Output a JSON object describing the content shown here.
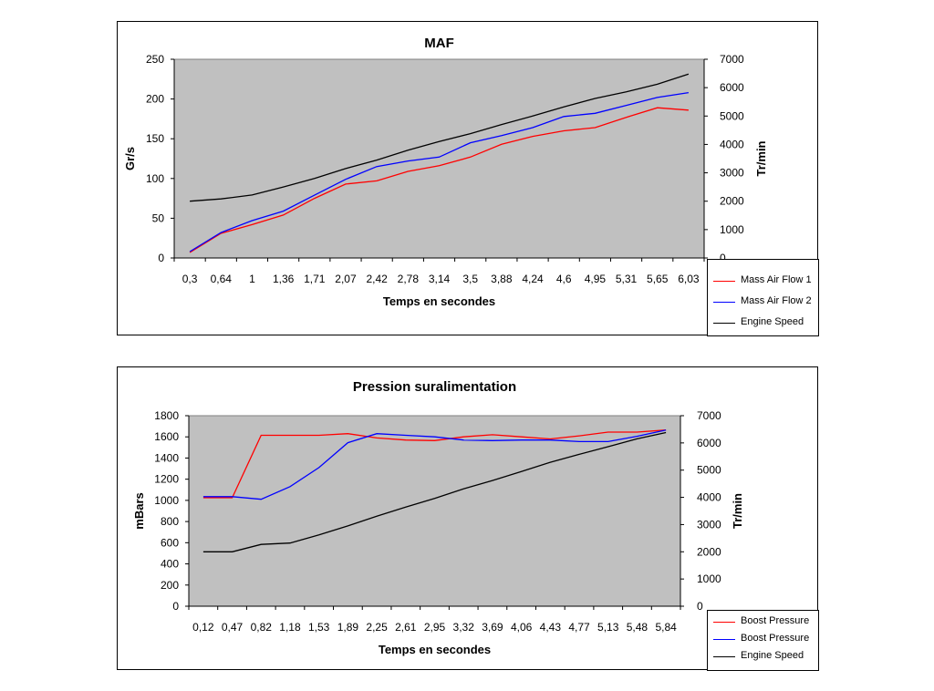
{
  "chart_data": [
    {
      "type": "line",
      "title": "MAF",
      "xlabel": "Temps en secondes",
      "ylabel": "Gr/s",
      "y2label": "Tr/min",
      "ylim": [
        0,
        250
      ],
      "y2lim": [
        0,
        7000
      ],
      "yticks": [
        "0",
        "50",
        "100",
        "150",
        "200",
        "250"
      ],
      "y2ticks": [
        "0",
        "1000",
        "2000",
        "3000",
        "4000",
        "5000",
        "6000",
        "7000"
      ],
      "plot_background": "#c0c0c0",
      "grid": false,
      "legend_position": "bottom-right",
      "x": [
        "0,3",
        "0,64",
        "1",
        "1,36",
        "1,71",
        "2,07",
        "2,42",
        "2,78",
        "3,14",
        "3,5",
        "3,88",
        "4,24",
        "4,6",
        "4,95",
        "5,31",
        "5,65",
        "6,03"
      ],
      "series": [
        {
          "name": "Mass Air Flow 1",
          "color": "#ff0000",
          "axis": "left",
          "values": [
            7,
            31,
            42,
            54,
            75,
            93,
            97,
            109,
            116,
            127,
            143,
            153,
            160,
            164,
            177,
            189,
            186
          ]
        },
        {
          "name": "Mass Air Flow 2",
          "color": "#0000ff",
          "axis": "left",
          "values": [
            8,
            32,
            47,
            59,
            79,
            99,
            115,
            122,
            127,
            145,
            154,
            164,
            178,
            182,
            192,
            202,
            208
          ]
        },
        {
          "name": "Engine Speed",
          "color": "#000000",
          "axis": "right",
          "values": [
            2000,
            2080,
            2220,
            2500,
            2800,
            3150,
            3450,
            3800,
            4100,
            4380,
            4700,
            5000,
            5320,
            5620,
            5850,
            6120,
            6480
          ]
        }
      ]
    },
    {
      "type": "line",
      "title": "Pression suralimentation",
      "xlabel": "Temps en secondes",
      "ylabel": "mBars",
      "y2label": "Tr/min",
      "ylim": [
        0,
        1800
      ],
      "y2lim": [
        0,
        7000
      ],
      "yticks": [
        "0",
        "200",
        "400",
        "600",
        "800",
        "1000",
        "1200",
        "1400",
        "1600",
        "1800"
      ],
      "y2ticks": [
        "0",
        "1000",
        "2000",
        "3000",
        "4000",
        "5000",
        "6000",
        "7000"
      ],
      "plot_background": "#c0c0c0",
      "grid": false,
      "legend_position": "bottom-right",
      "x": [
        "0,12",
        "0,47",
        "0,82",
        "1,18",
        "1,53",
        "1,89",
        "2,25",
        "2,61",
        "2,95",
        "3,32",
        "3,69",
        "4,06",
        "4,43",
        "4,77",
        "5,13",
        "5,48",
        "5,84"
      ],
      "series": [
        {
          "name": "Boost Pressure",
          "color": "#ff0000",
          "axis": "left",
          "values": [
            1025,
            1025,
            1615,
            1615,
            1615,
            1630,
            1590,
            1570,
            1565,
            1600,
            1620,
            1600,
            1580,
            1610,
            1645,
            1645,
            1665
          ]
        },
        {
          "name": "Boost Pressure",
          "color": "#0000ff",
          "axis": "left",
          "values": [
            1035,
            1035,
            1010,
            1130,
            1310,
            1545,
            1630,
            1615,
            1600,
            1570,
            1565,
            1570,
            1570,
            1555,
            1555,
            1605,
            1665
          ]
        },
        {
          "name": "Engine Speed",
          "color": "#000000",
          "axis": "right",
          "values": [
            2000,
            2000,
            2270,
            2320,
            2620,
            2950,
            3310,
            3640,
            3960,
            4310,
            4620,
            4950,
            5290,
            5580,
            5860,
            6150,
            6380
          ]
        }
      ]
    }
  ]
}
